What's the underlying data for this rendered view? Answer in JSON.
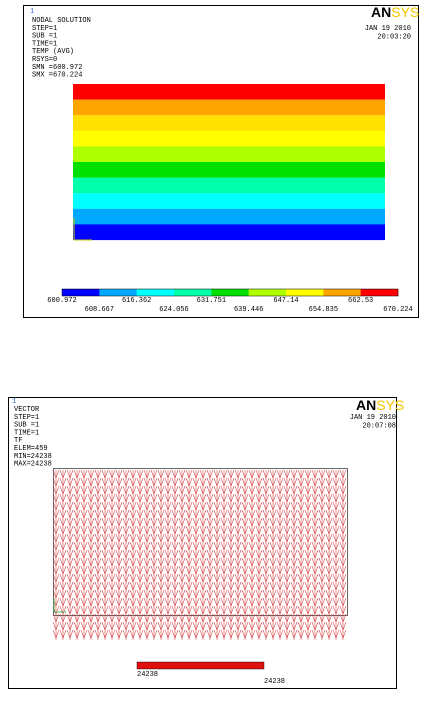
{
  "panel1": {
    "window_number": "1",
    "info": [
      "NODAL SOLUTION",
      "STEP=1",
      "SUB =1",
      "TIME=1",
      "TEMP     (AVG)",
      "RSYS=0",
      "SMN =600.972",
      "SMX =670.224"
    ],
    "logo": {
      "an": "AN",
      "sys": "SYS"
    },
    "date": "JAN 19 2010",
    "time": "20:03:20",
    "legend_top": [
      "600.972",
      "616.362",
      "631.751",
      "647.14",
      "662.53"
    ],
    "legend_bottom": [
      "608.667",
      "624.056",
      "639.446",
      "654.835",
      "670.224"
    ]
  },
  "panel2": {
    "window_number": "1",
    "info": [
      "VECTOR",
      "STEP=1",
      "SUB =1",
      "TIME=1",
      "TF",
      "ELEM=459",
      "MIN=24238",
      "MAX=24238"
    ],
    "logo": {
      "an": "AN",
      "sys": "SYS"
    },
    "date": "JAN 19 2010",
    "time": "20:07:08",
    "legend_min": "24238",
    "legend_max": "24238"
  }
}
